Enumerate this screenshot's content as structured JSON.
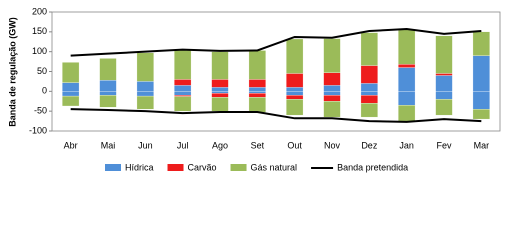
{
  "chart_data": {
    "type": "bar",
    "y_label": "Banda de regulação (GW)",
    "categories": [
      "Abr",
      "Mai",
      "Jun",
      "Jul",
      "Ago",
      "Set",
      "Out",
      "Nov",
      "Dez",
      "Jan",
      "Fev",
      "Mar"
    ],
    "series": [
      {
        "name": "Hídrica",
        "color": "#4f8fd8",
        "values": [
          22,
          28,
          25,
          15,
          10,
          10,
          10,
          15,
          20,
          60,
          40,
          90
        ],
        "negative_values": [
          -12,
          -10,
          -12,
          -10,
          -5,
          -5,
          -10,
          -10,
          -10,
          -35,
          -20,
          -45
        ]
      },
      {
        "name": "Carvão",
        "color": "#ee1c1c",
        "values": [
          0,
          0,
          0,
          15,
          20,
          20,
          35,
          32,
          45,
          8,
          5,
          0
        ],
        "negative_values": [
          0,
          0,
          0,
          -3,
          -10,
          -10,
          -10,
          -15,
          -20,
          0,
          0,
          0
        ]
      },
      {
        "name": "Gás natural",
        "color": "#9bbb59",
        "values": [
          51,
          55,
          72,
          75,
          70,
          73,
          87,
          86,
          83,
          87,
          95,
          60
        ],
        "negative_values": [
          -25,
          -30,
          -33,
          -37,
          -35,
          -38,
          -40,
          -40,
          -35,
          -40,
          -40,
          -25
        ]
      }
    ],
    "line": {
      "name": "Banda pretendida",
      "color": "#000000",
      "values": [
        90,
        95,
        100,
        105,
        102,
        103,
        137,
        135,
        152,
        157,
        145,
        152
      ],
      "lower_values": [
        -45,
        -47,
        -50,
        -55,
        -52,
        -52,
        -68,
        -68,
        -75,
        -77,
        -70,
        -75
      ]
    },
    "ylim": [
      -100,
      200
    ],
    "yticks": [
      -100,
      -50,
      0,
      50,
      100,
      150,
      200
    ]
  }
}
